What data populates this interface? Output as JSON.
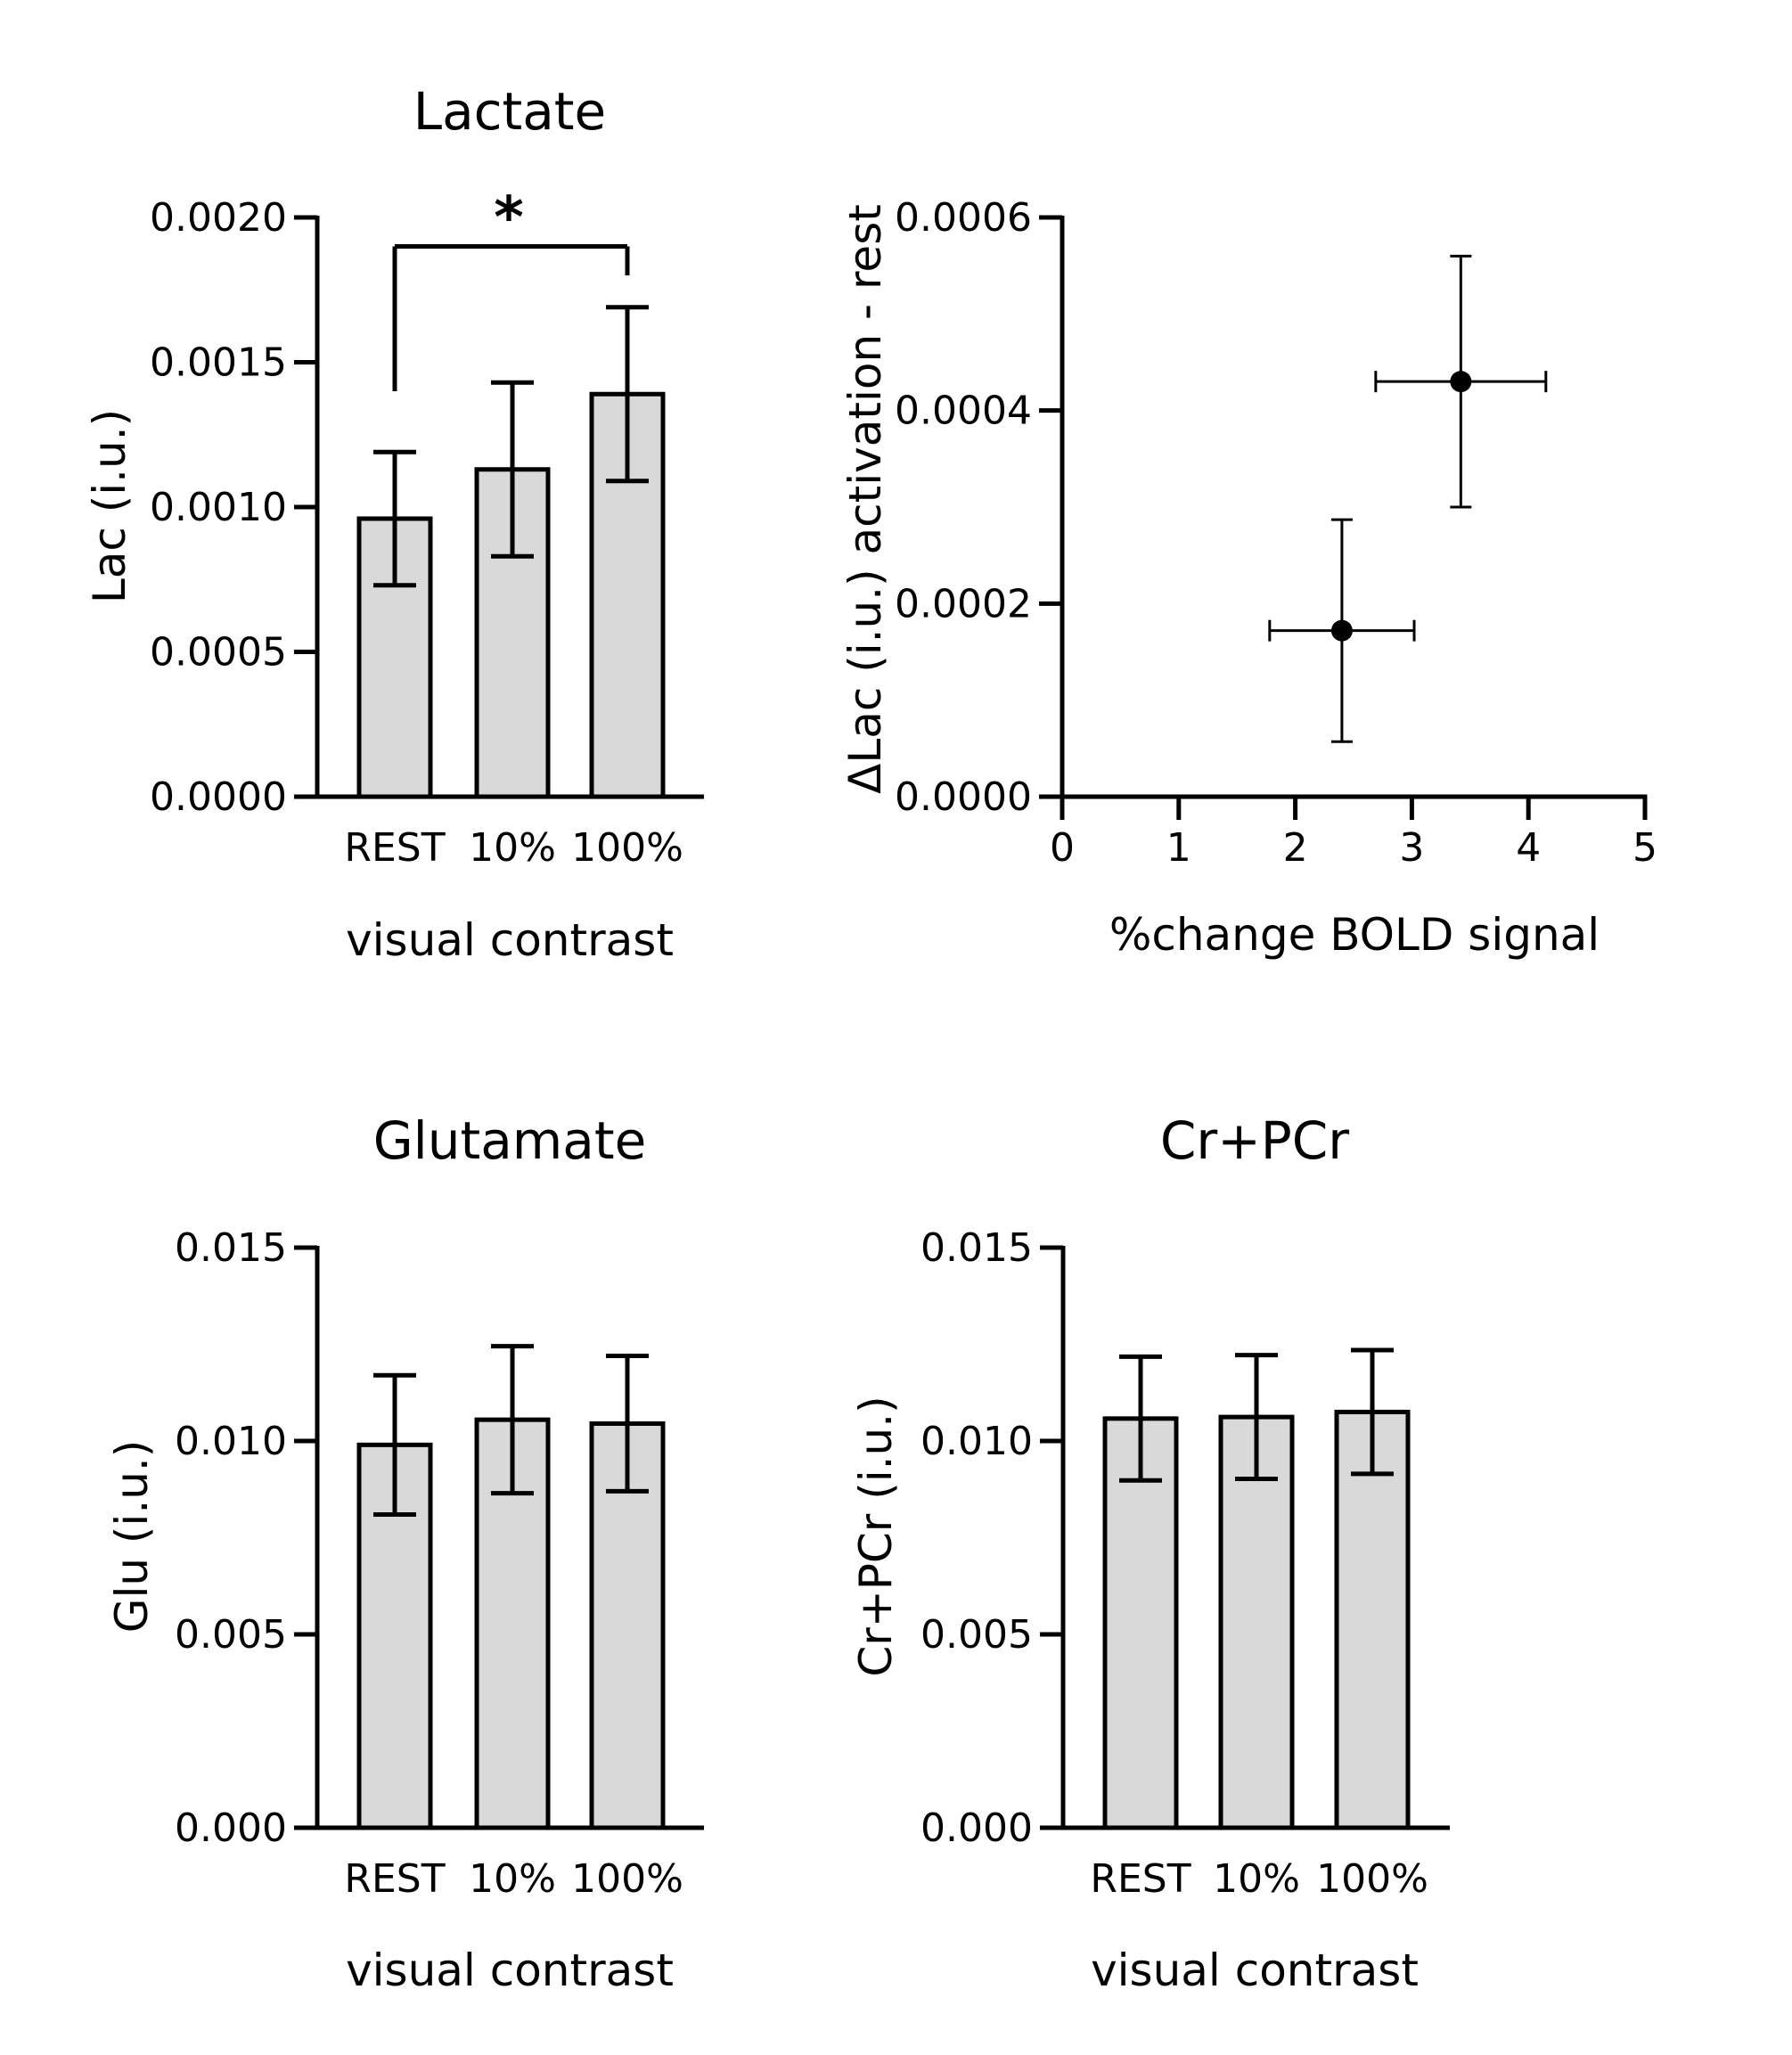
{
  "colors": {
    "bar_fill": "#d9d9d9",
    "stroke": "#000000",
    "background": "#ffffff"
  },
  "chart_data": [
    {
      "id": "lactate",
      "type": "bar",
      "title": "Lactate",
      "xlabel": "visual contrast",
      "ylabel": "Lac (i.u.)",
      "categories": [
        "REST",
        "10%",
        "100%"
      ],
      "values": [
        0.00096,
        0.00113,
        0.00139
      ],
      "errors": [
        0.00023,
        0.0003,
        0.0003
      ],
      "ylim": [
        0,
        0.002
      ],
      "yticks": [
        "0.0000",
        "0.0005",
        "0.0010",
        "0.0015",
        "0.0020"
      ],
      "significance": {
        "label": "*",
        "from": 0,
        "to": 2,
        "level": 0.0019,
        "drop_from": 0.0014,
        "drop_to": 0.0018
      }
    },
    {
      "id": "scatter",
      "type": "scatter",
      "title": "",
      "xlabel": "%change BOLD signal",
      "ylabel": "ΔLac (i.u.) activation - rest",
      "points": [
        {
          "x": 2.4,
          "y": 0.000172,
          "xerr": 0.62,
          "yerr": 0.000115
        },
        {
          "x": 3.42,
          "y": 0.00043,
          "xerr": 0.73,
          "yerr": 0.00013
        }
      ],
      "xlim": [
        0,
        5
      ],
      "ylim": [
        0,
        0.0006
      ],
      "xticks": [
        "0",
        "1",
        "2",
        "3",
        "4",
        "5"
      ],
      "yticks": [
        "0.0000",
        "0.0002",
        "0.0004",
        "0.0006"
      ]
    },
    {
      "id": "glutamate",
      "type": "bar",
      "title": "Glutamate",
      "xlabel": "visual contrast",
      "ylabel": "Glu (i.u.)",
      "categories": [
        "REST",
        "10%",
        "100%"
      ],
      "values": [
        0.0099,
        0.01055,
        0.01045
      ],
      "errors": [
        0.0018,
        0.0019,
        0.00175
      ],
      "ylim": [
        0,
        0.015
      ],
      "yticks": [
        "0.000",
        "0.005",
        "0.010",
        "0.015"
      ]
    },
    {
      "id": "crpcr",
      "type": "bar",
      "title": "Cr+PCr",
      "xlabel": "visual contrast",
      "ylabel": "Cr+PCr (i.u.)",
      "categories": [
        "REST",
        "10%",
        "100%"
      ],
      "values": [
        0.01058,
        0.01062,
        0.01075
      ],
      "errors": [
        0.0016,
        0.0016,
        0.0016
      ],
      "ylim": [
        0,
        0.015
      ],
      "yticks": [
        "0.000",
        "0.005",
        "0.010",
        "0.015"
      ]
    }
  ]
}
